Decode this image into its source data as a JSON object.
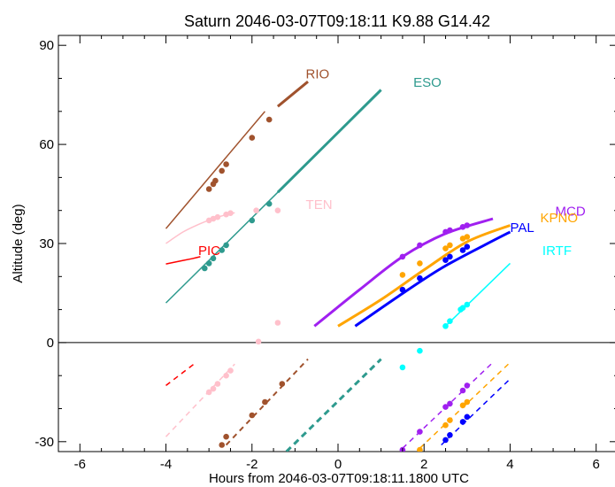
{
  "chart_data": {
    "type": "line",
    "title": "Saturn 2046-03-07T09:18:11   K9.88   G14.42",
    "xlabel": "Hours from 2046-03-07T09:18:11.1800 UTC",
    "ylabel": "Altitude (deg)",
    "xlim": [
      -6.5,
      6.5
    ],
    "ylim": [
      -33,
      93
    ],
    "x_ticks": [
      -6,
      -4,
      -2,
      0,
      2,
      4,
      6
    ],
    "x_tick_labels": [
      "-6",
      "-4",
      "-2",
      "0",
      "2",
      "4",
      "6"
    ],
    "y_ticks": [
      -30,
      0,
      30,
      60,
      90
    ],
    "y_tick_labels": [
      "-30",
      "0",
      "30",
      "60",
      "90"
    ],
    "horizon_altitude": 0,
    "grid": false,
    "series": [
      {
        "name": "RIO",
        "color": "#a0522d",
        "label_pos": [
          -0.75,
          80
        ],
        "segments": [
          {
            "style": "solid",
            "width": 1.5,
            "points": [
              [
                -4.0,
                34.5
              ],
              [
                -1.7,
                70.0
              ]
            ]
          },
          {
            "style": "solid",
            "width": 3,
            "points": [
              [
                -1.4,
                71.5
              ],
              [
                -0.7,
                79.0
              ]
            ]
          },
          {
            "style": "dashed",
            "width": 2,
            "points": [
              [
                -2.6,
                -31.0
              ],
              [
                -0.7,
                -5.0
              ]
            ]
          }
        ],
        "markers": [
          [
            -3.0,
            46.5
          ],
          [
            -2.9,
            48.0
          ],
          [
            -2.85,
            49.0
          ],
          [
            -2.7,
            52.0
          ],
          [
            -2.6,
            54.0
          ],
          [
            -2.0,
            62.0
          ],
          [
            -1.6,
            67.5
          ],
          [
            -2.7,
            -31.0
          ],
          [
            -2.6,
            -28.5
          ],
          [
            -2.0,
            -22.0
          ],
          [
            -1.7,
            -18.0
          ],
          [
            -1.3,
            -12.5
          ]
        ]
      },
      {
        "name": "ESO",
        "color": "#2e9a8e",
        "label_pos": [
          1.75,
          77.5
        ],
        "segments": [
          {
            "style": "solid",
            "width": 1.5,
            "points": [
              [
                -4.0,
                12.0
              ],
              [
                -1.4,
                45.5
              ]
            ]
          },
          {
            "style": "solid",
            "width": 3,
            "points": [
              [
                -1.4,
                45.5
              ],
              [
                1.0,
                76.5
              ]
            ]
          },
          {
            "style": "dashed",
            "width": 3,
            "points": [
              [
                -1.2,
                -33.0
              ],
              [
                1.0,
                -5.0
              ]
            ]
          }
        ],
        "markers": [
          [
            -3.1,
            22.5
          ],
          [
            -3.0,
            24.0
          ],
          [
            -2.9,
            25.5
          ],
          [
            -2.7,
            28.0
          ],
          [
            -2.6,
            29.5
          ],
          [
            -2.0,
            37.0
          ],
          [
            -1.6,
            42.0
          ]
        ]
      },
      {
        "name": "TEN",
        "color": "#ffc0cb",
        "label_pos": [
          -0.75,
          40.5
        ],
        "segments": [
          {
            "style": "solid",
            "width": 1.5,
            "curve": true,
            "points": [
              [
                -4.0,
                30.0
              ],
              [
                -3.6,
                33.5
              ],
              [
                -3.2,
                36.0
              ],
              [
                -2.8,
                38.0
              ],
              [
                -2.4,
                39.3
              ]
            ]
          },
          {
            "style": "dashed",
            "width": 1.5,
            "points": [
              [
                -4.0,
                -28.5
              ],
              [
                -2.4,
                -6.5
              ]
            ]
          }
        ],
        "markers": [
          [
            -3.0,
            37.0
          ],
          [
            -2.9,
            37.5
          ],
          [
            -2.8,
            38.0
          ],
          [
            -2.6,
            38.8
          ],
          [
            -2.5,
            39.2
          ],
          [
            -1.9,
            40.0
          ],
          [
            -1.4,
            40.0
          ],
          [
            -1.4,
            6.0
          ],
          [
            -1.85,
            0.3
          ],
          [
            -3.0,
            -15.0
          ],
          [
            -2.9,
            -14.0
          ],
          [
            -2.8,
            -12.5
          ],
          [
            -2.6,
            -10.0
          ],
          [
            -2.5,
            -8.5
          ]
        ]
      },
      {
        "name": "PIC",
        "color": "#ff0000",
        "label_pos": [
          -3.25,
          26.5
        ],
        "segments": [
          {
            "style": "solid",
            "width": 1.5,
            "curve": true,
            "points": [
              [
                -4.0,
                23.8
              ],
              [
                -3.7,
                24.6
              ],
              [
                -3.4,
                25.4
              ],
              [
                -3.2,
                26.0
              ]
            ]
          },
          {
            "style": "dashed",
            "width": 1.5,
            "points": [
              [
                -4.0,
                -13.0
              ],
              [
                -3.3,
                -6.0
              ]
            ]
          }
        ],
        "markers": []
      },
      {
        "name": "MCD",
        "color": "#a020f0",
        "label_pos": [
          5.05,
          38.5
        ],
        "segments": [
          {
            "style": "solid",
            "width": 3,
            "curve": true,
            "points": [
              [
                -0.55,
                5.0
              ],
              [
                0.5,
                16.0
              ],
              [
                1.5,
                26.0
              ],
              [
                2.5,
                33.0
              ],
              [
                3.6,
                37.5
              ]
            ]
          },
          {
            "style": "dashed",
            "width": 1.5,
            "points": [
              [
                1.5,
                -32.0
              ],
              [
                3.6,
                -6.0
              ]
            ]
          }
        ],
        "markers": [
          [
            1.5,
            26.0
          ],
          [
            1.9,
            29.5
          ],
          [
            2.5,
            33.5
          ],
          [
            2.6,
            34.0
          ],
          [
            2.9,
            35.0
          ],
          [
            3.0,
            35.5
          ],
          [
            1.5,
            -32.5
          ],
          [
            1.9,
            -27.0
          ],
          [
            2.5,
            -19.5
          ],
          [
            2.6,
            -18.5
          ],
          [
            2.9,
            -14.5
          ],
          [
            3.0,
            -13.0
          ]
        ]
      },
      {
        "name": "KPNO",
        "color": "#ffa500",
        "label_pos": [
          4.7,
          36.5
        ],
        "segments": [
          {
            "style": "solid",
            "width": 3,
            "curve": true,
            "points": [
              [
                0.0,
                5.0
              ],
              [
                1.0,
                13.0
              ],
              [
                2.0,
                22.0
              ],
              [
                3.0,
                30.5
              ],
              [
                4.0,
                35.5
              ]
            ]
          },
          {
            "style": "dashed",
            "width": 1.5,
            "points": [
              [
                1.9,
                -32.0
              ],
              [
                4.0,
                -6.0
              ]
            ]
          }
        ],
        "markers": [
          [
            1.5,
            20.5
          ],
          [
            1.9,
            24.0
          ],
          [
            2.5,
            28.5
          ],
          [
            2.6,
            29.5
          ],
          [
            2.9,
            31.5
          ],
          [
            3.0,
            32.0
          ],
          [
            1.9,
            -32.5
          ],
          [
            2.5,
            -25.0
          ],
          [
            2.6,
            -23.5
          ],
          [
            2.9,
            -19.0
          ],
          [
            3.0,
            -18.0
          ]
        ]
      },
      {
        "name": "PAL",
        "color": "#0000ff",
        "label_pos": [
          4.0,
          33.5
        ],
        "segments": [
          {
            "style": "solid",
            "width": 3,
            "curve": true,
            "points": [
              [
                0.4,
                5.0
              ],
              [
                1.4,
                14.0
              ],
              [
                2.4,
                22.5
              ],
              [
                3.4,
                29.5
              ],
              [
                4.0,
                33.5
              ]
            ]
          },
          {
            "style": "dashed",
            "width": 1.5,
            "points": [
              [
                2.4,
                -31.0
              ],
              [
                4.0,
                -11.0
              ]
            ]
          }
        ],
        "markers": [
          [
            1.5,
            16.0
          ],
          [
            1.9,
            19.5
          ],
          [
            2.5,
            25.0
          ],
          [
            2.6,
            26.0
          ],
          [
            2.9,
            28.0
          ],
          [
            3.0,
            29.0
          ],
          [
            2.5,
            -29.5
          ],
          [
            2.6,
            -28.0
          ],
          [
            2.9,
            -24.0
          ],
          [
            3.0,
            -22.5
          ]
        ]
      },
      {
        "name": "IRTF",
        "color": "#00ffff",
        "label_pos": [
          4.75,
          26.5
        ],
        "segments": [
          {
            "style": "solid",
            "width": 1.5,
            "points": [
              [
                2.5,
                5.0
              ],
              [
                4.0,
                24.0
              ]
            ]
          }
        ],
        "markers": [
          [
            2.5,
            5.0
          ],
          [
            2.6,
            6.5
          ],
          [
            2.85,
            10.0
          ],
          [
            2.9,
            10.5
          ],
          [
            3.0,
            11.5
          ],
          [
            1.9,
            -2.5
          ],
          [
            1.5,
            -7.5
          ]
        ]
      }
    ]
  }
}
